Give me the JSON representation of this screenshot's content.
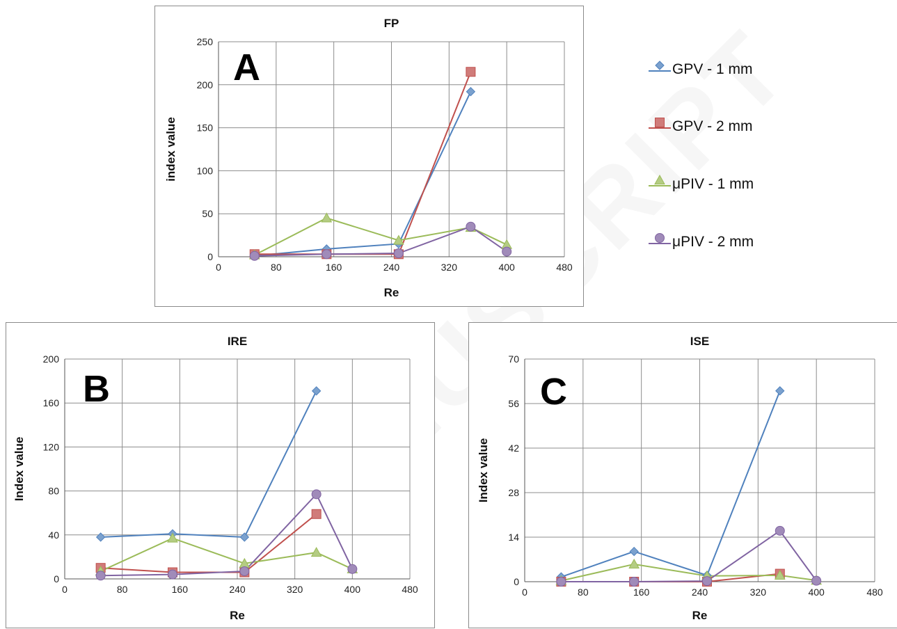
{
  "legend": {
    "items": [
      {
        "label": "GPV - 1 mm",
        "marker": "diamond",
        "color": "#4f81bd"
      },
      {
        "label": "GPV - 2 mm",
        "marker": "square",
        "color": "#c0504d"
      },
      {
        "label": "μPIV - 1 mm",
        "marker": "triangle",
        "color": "#9bbb59"
      },
      {
        "label": "μPIV - 2 mm",
        "marker": "circle",
        "color": "#8064a2"
      }
    ]
  },
  "watermark": "MANUSCRIPT",
  "chart_data": [
    {
      "type": "line",
      "panel_letter": "A",
      "title": "FP",
      "xlabel": "Re",
      "ylabel": "index value",
      "xlim": [
        0,
        480
      ],
      "xticks": [
        0,
        80,
        160,
        240,
        320,
        400,
        480
      ],
      "ylim": [
        0,
        250
      ],
      "yticks": [
        0,
        50,
        100,
        150,
        200,
        250
      ],
      "grid": true,
      "series": [
        {
          "name": "GPV - 1 mm",
          "x": [
            50,
            150,
            250,
            350
          ],
          "y": [
            1,
            9,
            15,
            192
          ]
        },
        {
          "name": "GPV - 2 mm",
          "x": [
            50,
            150,
            250,
            350
          ],
          "y": [
            3,
            3,
            3,
            215
          ]
        },
        {
          "name": "μPIV - 1 mm",
          "x": [
            50,
            150,
            250,
            350,
            400
          ],
          "y": [
            2,
            45,
            19,
            34,
            14
          ]
        },
        {
          "name": "μPIV - 2 mm",
          "x": [
            50,
            150,
            250,
            350,
            400
          ],
          "y": [
            1,
            3,
            4,
            35,
            6
          ]
        }
      ]
    },
    {
      "type": "line",
      "panel_letter": "B",
      "title": "IRE",
      "xlabel": "Re",
      "ylabel": "Index value",
      "xlim": [
        0,
        480
      ],
      "xticks": [
        0,
        80,
        160,
        240,
        320,
        400,
        480
      ],
      "ylim": [
        0,
        200
      ],
      "yticks": [
        0,
        40,
        80,
        120,
        160,
        200
      ],
      "grid": true,
      "series": [
        {
          "name": "GPV - 1 mm",
          "x": [
            50,
            150,
            250,
            350
          ],
          "y": [
            38,
            41,
            38,
            171
          ]
        },
        {
          "name": "GPV - 2 mm",
          "x": [
            50,
            150,
            250,
            350
          ],
          "y": [
            10,
            6,
            6,
            59
          ]
        },
        {
          "name": "μPIV - 1 mm",
          "x": [
            50,
            150,
            250,
            350,
            400
          ],
          "y": [
            7,
            37,
            14,
            24,
            9
          ]
        },
        {
          "name": "μPIV - 2 mm",
          "x": [
            50,
            150,
            250,
            350,
            400
          ],
          "y": [
            3,
            4,
            7,
            77,
            9
          ]
        }
      ]
    },
    {
      "type": "line",
      "panel_letter": "C",
      "title": "ISE",
      "xlabel": "Re",
      "ylabel": "Index value",
      "xlim": [
        0,
        480
      ],
      "xticks": [
        0,
        80,
        160,
        240,
        320,
        400,
        480
      ],
      "ylim": [
        0,
        70
      ],
      "yticks": [
        0,
        14,
        28,
        42,
        56,
        70
      ],
      "grid": true,
      "series": [
        {
          "name": "GPV - 1 mm",
          "x": [
            50,
            150,
            250,
            350
          ],
          "y": [
            1.5,
            9.5,
            2,
            60
          ]
        },
        {
          "name": "GPV - 2 mm",
          "x": [
            50,
            150,
            250,
            350
          ],
          "y": [
            0,
            0,
            0,
            2.5
          ]
        },
        {
          "name": "μPIV - 1 mm",
          "x": [
            50,
            150,
            250,
            350,
            400
          ],
          "y": [
            0.3,
            5.5,
            1.8,
            2,
            0.4
          ]
        },
        {
          "name": "μPIV - 2 mm",
          "x": [
            50,
            150,
            250,
            350,
            400
          ],
          "y": [
            0,
            0,
            0.2,
            16,
            0.3
          ]
        }
      ]
    }
  ]
}
